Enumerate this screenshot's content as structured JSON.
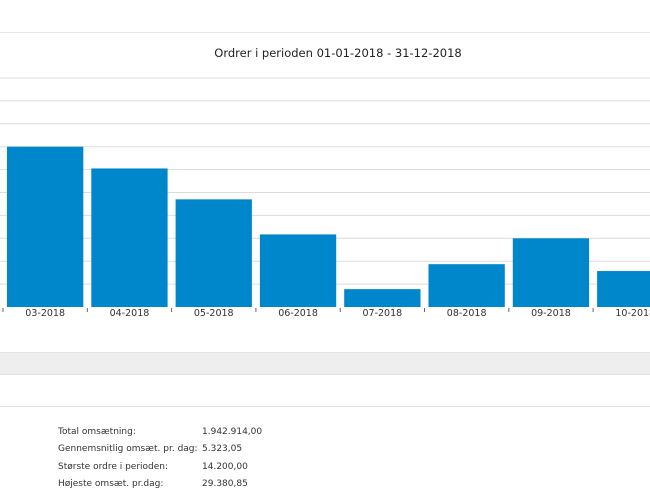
{
  "chart_data": {
    "type": "bar",
    "title": "Ordrer i perioden 01-01-2018 - 31-12-2018",
    "categories": [
      "03-2018",
      "04-2018",
      "05-2018",
      "06-2018",
      "07-2018",
      "08-2018",
      "09-2018",
      "10-2018"
    ],
    "values": [
      7.0,
      6.05,
      4.7,
      3.17,
      0.78,
      1.87,
      3.0,
      1.57
    ],
    "ylim": [
      0,
      10
    ],
    "grid": true,
    "bar_color": "#0086cb"
  },
  "stats": [
    {
      "label": "Total omsætning:",
      "value": "1.942.914,00"
    },
    {
      "label": "Gennemsnitlig omsæt. pr. dag:",
      "value": "5.323,05"
    },
    {
      "label": "Største ordre i perioden:",
      "value": "14.200,00"
    },
    {
      "label": "Højeste omsæt. pr.dag:",
      "value": "29.380,85"
    }
  ]
}
